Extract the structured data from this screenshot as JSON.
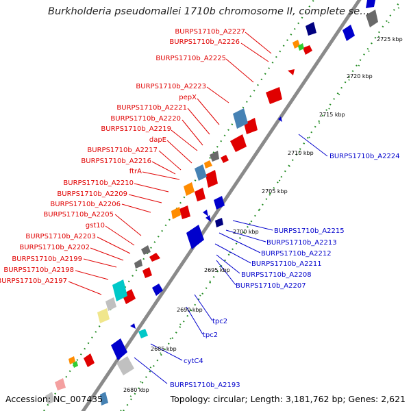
{
  "title": "Burkholderia pseudomallei 1710b chromosome II, complete sequ...",
  "footer": {
    "accession": "Accession: NC_007435",
    "summary": "Topology: circular; Length: 3,181,762 bp; Genes: 2,621"
  },
  "colors": {
    "forward_label": "#e00000",
    "reverse_label": "#0000cc",
    "backbone": "#8a8a8a",
    "dots": "#228b22"
  },
  "scale_ticks": [
    "2725 kbp",
    "2720 kbp",
    "2715 kbp",
    "2710 kbp",
    "2705 kbp",
    "2700 kbp",
    "2695 kbp",
    "2690 kbp",
    "2685 kbp",
    "2680 kbp"
  ],
  "forward_labels": [
    "BURPS1710b_A2227",
    "BURPS1710b_A2226",
    "BURPS1710b_A2225",
    "BURPS1710b_A2223",
    "pepX",
    "BURPS1710b_A2221",
    "BURPS1710b_A2220",
    "BURPS1710b_A2219",
    "dapE",
    "BURPS1710b_A2217",
    "BURPS1710b_A2216",
    "ftrA",
    "BURPS1710b_A2210",
    "BURPS1710b_A2209",
    "BURPS1710b_A2206",
    "BURPS1710b_A2205",
    "gst10",
    "BURPS1710b_A2203",
    "BURPS1710b_A2202",
    "BURPS1710b_A2199",
    "BURPS1710b_A2198",
    "BURPS1710b_A2197"
  ],
  "reverse_labels": [
    "BURPS1710b_A2224",
    "BURPS1710b_A2215",
    "BURPS1710b_A2213",
    "BURPS1710b_A2212",
    "BURPS1710b_A2211",
    "BURPS1710b_A2208",
    "BURPS1710b_A2207",
    "tpc2",
    "tpc2",
    "cytC4",
    "BURPS1710b_A2193"
  ]
}
